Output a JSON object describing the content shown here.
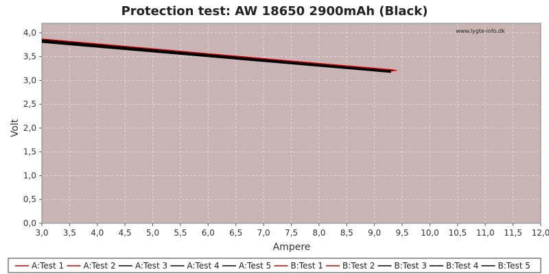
{
  "chart_data": {
    "type": "line",
    "title": "Protection test: AW 18650 2900mAh (Black)",
    "xlabel": "Ampere",
    "ylabel": "Volt",
    "watermark": "www.lygte-info.dk",
    "xlim": [
      3.0,
      12.0
    ],
    "ylim": [
      0.0,
      4.2
    ],
    "x_ticks": [
      3.0,
      3.5,
      4.0,
      4.5,
      5.0,
      5.5,
      6.0,
      6.5,
      7.0,
      7.5,
      8.0,
      8.5,
      9.0,
      9.5,
      10.0,
      10.5,
      11.0,
      11.5,
      12.0
    ],
    "x_tick_labels": [
      "3,0",
      "3,5",
      "4,0",
      "4,5",
      "5,0",
      "5,5",
      "6,0",
      "6,5",
      "7,0",
      "7,5",
      "8,0",
      "8,5",
      "9,0",
      "9,5",
      "10,0",
      "10,5",
      "11,0",
      "11,5",
      "12,0"
    ],
    "y_ticks": [
      0.0,
      0.5,
      1.0,
      1.5,
      2.0,
      2.5,
      3.0,
      3.5,
      4.0
    ],
    "y_tick_labels": [
      "0,0",
      "0,5",
      "1,0",
      "1,5",
      "2,0",
      "2,5",
      "3,0",
      "3,5",
      "4,0"
    ],
    "grid": true,
    "legend_position": "bottom",
    "colors": {
      "plot_bg": "#c8b4b4",
      "grid": "#e6dcdc",
      "axis": "#888888"
    },
    "series": [
      {
        "name": "A:Test 1",
        "color": "#cc0000",
        "x": [
          3.0,
          9.35
        ],
        "y": [
          3.86,
          3.21
        ]
      },
      {
        "name": "A:Test 2",
        "color": "#cc0000",
        "x": [
          3.0,
          9.35
        ],
        "y": [
          3.85,
          3.2
        ]
      },
      {
        "name": "A:Test 3",
        "color": "#000000",
        "x": [
          3.0,
          9.3
        ],
        "y": [
          3.8,
          3.17
        ]
      },
      {
        "name": "A:Test 4",
        "color": "#000000",
        "x": [
          3.0,
          9.3
        ],
        "y": [
          3.83,
          3.19
        ]
      },
      {
        "name": "A:Test 5",
        "color": "#000000",
        "x": [
          3.0,
          9.3
        ],
        "y": [
          3.84,
          3.2
        ]
      },
      {
        "name": "B:Test 1",
        "color": "#cc0000",
        "x": [
          3.0,
          9.4
        ],
        "y": [
          3.87,
          3.21
        ]
      },
      {
        "name": "B:Test 2",
        "color": "#cc0000",
        "x": [
          3.0,
          9.35
        ],
        "y": [
          3.86,
          3.22
        ]
      },
      {
        "name": "B:Test 3",
        "color": "#000000",
        "x": [
          3.0,
          9.3
        ],
        "y": [
          3.82,
          3.18
        ]
      },
      {
        "name": "B:Test 4",
        "color": "#000000",
        "x": [
          3.0,
          9.3
        ],
        "y": [
          3.84,
          3.19
        ]
      },
      {
        "name": "B:Test 5",
        "color": "#000000",
        "x": [
          3.0,
          9.3
        ],
        "y": [
          3.85,
          3.2
        ]
      }
    ]
  }
}
